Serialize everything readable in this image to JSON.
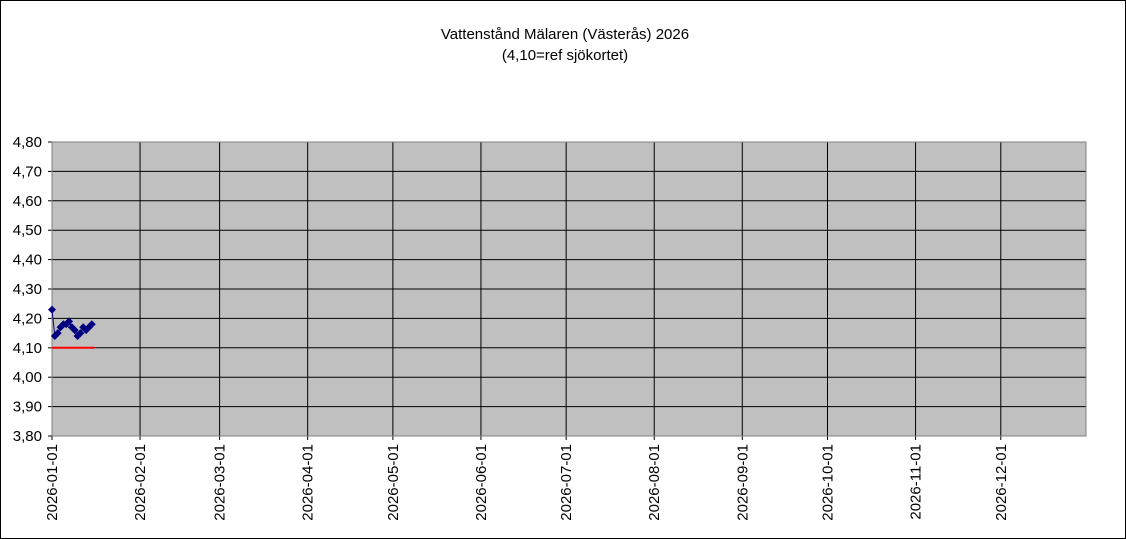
{
  "chart_data": {
    "type": "line",
    "title": "Vattenstånd Mälaren (Västerås) 2026",
    "subtitle": "(4,10=ref sjökortet)",
    "xlabel": "",
    "ylabel": "",
    "xlim": [
      "2026-01-01",
      "2026-12-31"
    ],
    "ylim": [
      3.8,
      4.8
    ],
    "grid": true,
    "legend": "none",
    "y_ticks": [
      "3,80",
      "3,90",
      "4,00",
      "4,10",
      "4,20",
      "4,30",
      "4,40",
      "4,50",
      "4,60",
      "4,70",
      "4,80"
    ],
    "x_ticks": [
      "2026-01-01",
      "2026-02-01",
      "2026-03-01",
      "2026-04-01",
      "2026-05-01",
      "2026-06-01",
      "2026-07-01",
      "2026-08-01",
      "2026-09-01",
      "2026-10-01",
      "2026-11-01",
      "2026-12-01"
    ],
    "series": [
      {
        "color": "#000080",
        "marker": "diamond",
        "x": [
          "2026-01-01",
          "2026-01-02",
          "2026-01-03",
          "2026-01-04",
          "2026-01-05",
          "2026-01-06",
          "2026-01-07",
          "2026-01-08",
          "2026-01-09",
          "2026-01-10",
          "2026-01-11",
          "2026-01-12",
          "2026-01-13",
          "2026-01-14",
          "2026-01-15"
        ],
        "y": [
          4.23,
          4.14,
          4.15,
          4.17,
          4.18,
          4.18,
          4.19,
          4.17,
          4.16,
          4.14,
          4.15,
          4.17,
          4.16,
          4.17,
          4.18
        ]
      },
      {
        "color": "#FF0000",
        "marker": "none",
        "x": [
          "2026-01-01",
          "2026-01-16"
        ],
        "y": [
          4.1,
          4.1
        ]
      }
    ],
    "colors": {
      "plot_background": "#C0C0C0",
      "grid": "#000000"
    }
  }
}
